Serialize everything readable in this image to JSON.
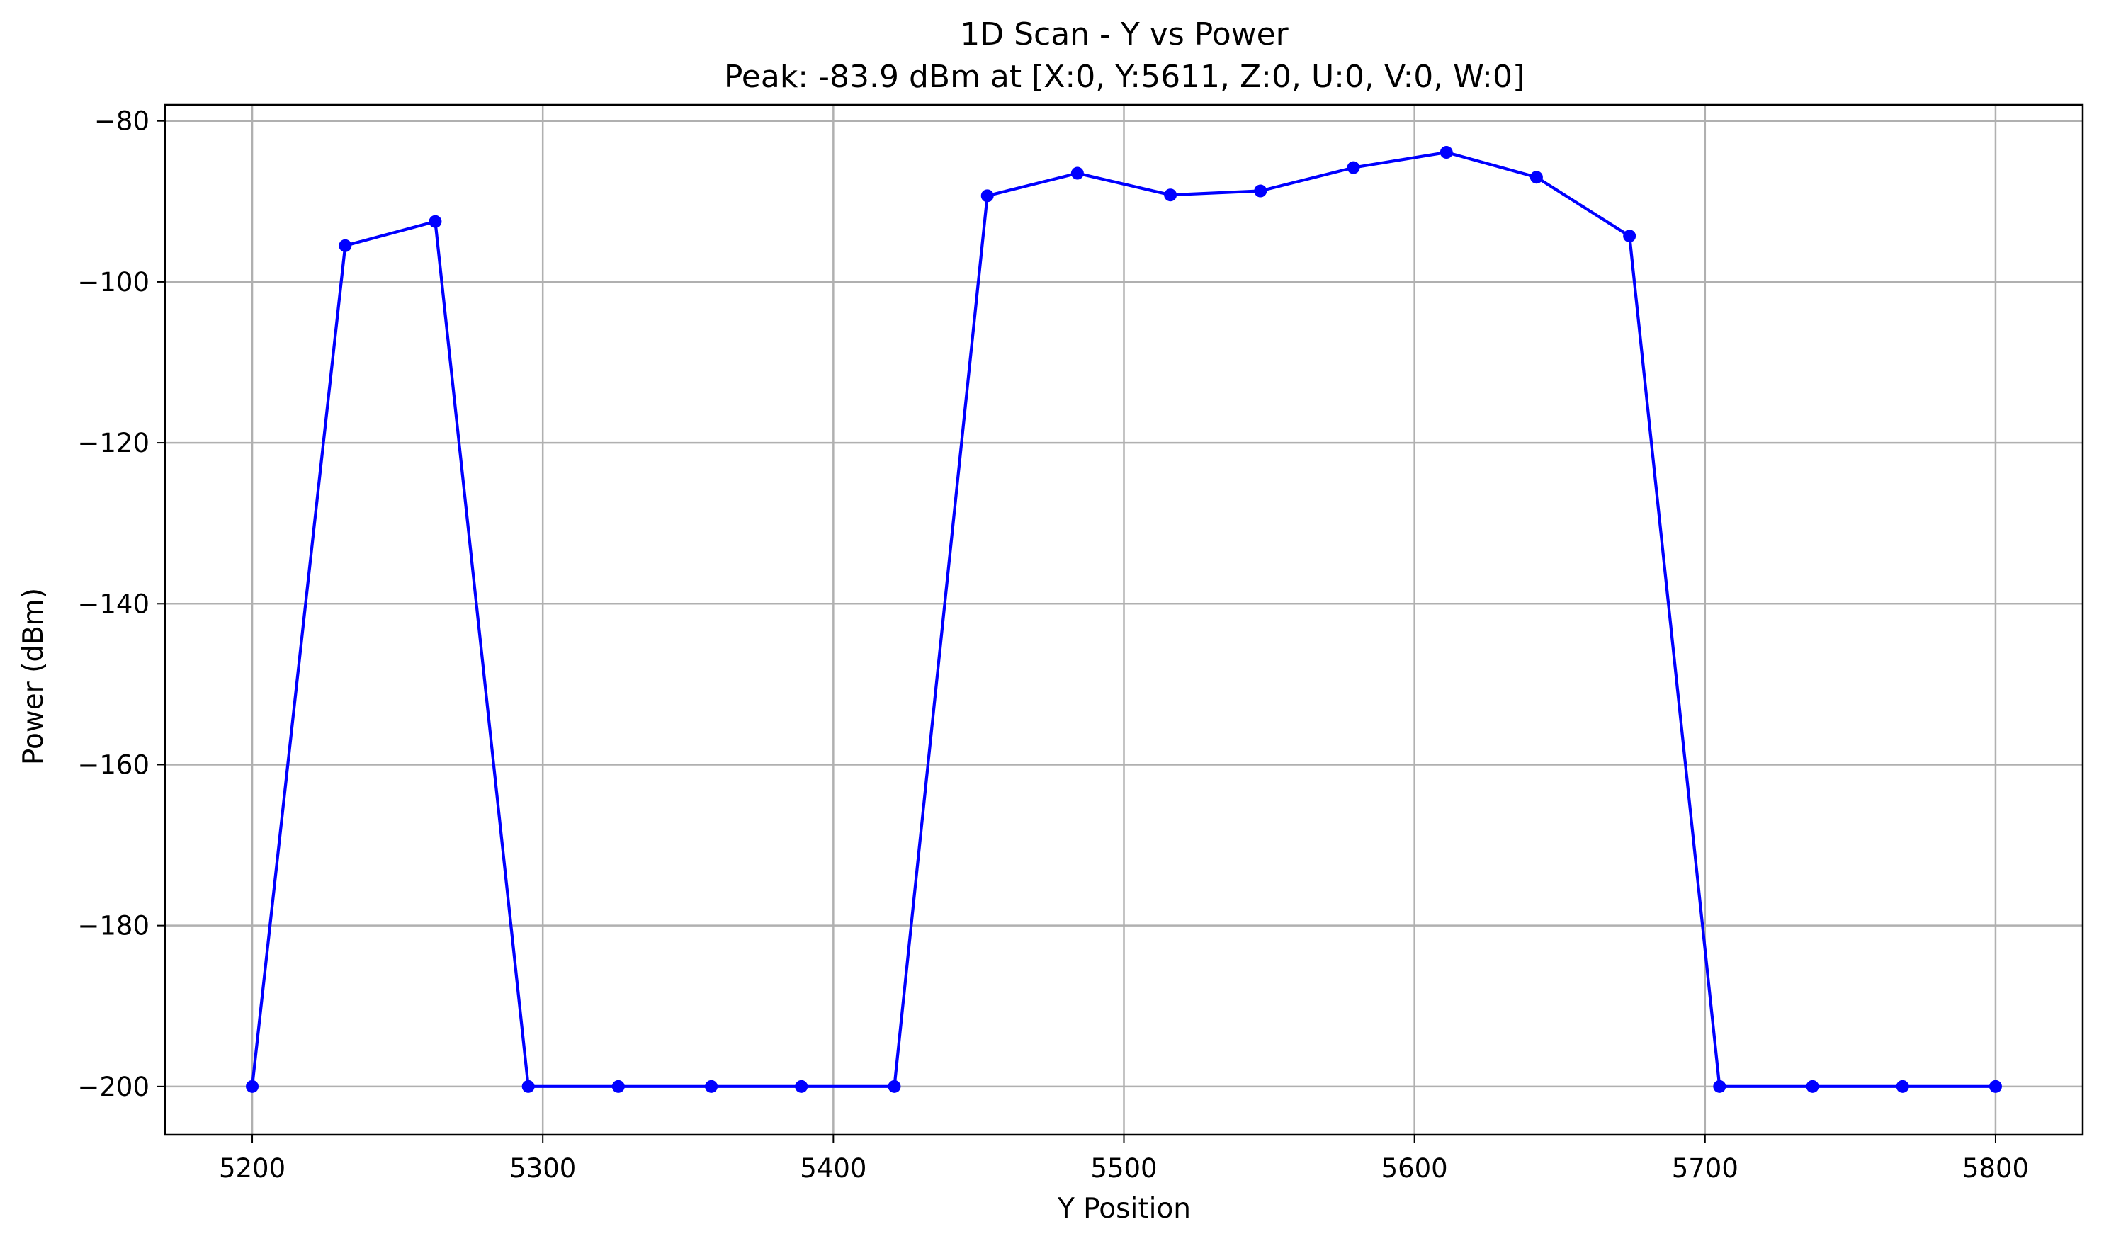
{
  "chart_data": {
    "type": "line",
    "title": "1D Scan - Y vs Power",
    "subtitle": "Peak: -83.9 dBm at [X:0, Y:5611, Z:0, U:0, V:0, W:0]",
    "xlabel": "Y Position",
    "ylabel": "Power (dBm)",
    "xlim": [
      5170,
      5830
    ],
    "ylim": [
      -206,
      -78
    ],
    "xticks": [
      5200,
      5300,
      5400,
      5500,
      5600,
      5700,
      5800
    ],
    "yticks": [
      -80,
      -100,
      -120,
      -140,
      -160,
      -180,
      -200
    ],
    "xtick_labels": [
      "5200",
      "5300",
      "5400",
      "5500",
      "5600",
      "5700",
      "5800"
    ],
    "ytick_labels": [
      "−80",
      "−100",
      "−120",
      "−140",
      "−160",
      "−180",
      "−200"
    ],
    "grid": true,
    "color": "#0000ff",
    "series": [
      {
        "x": [
          5200,
          5232,
          5263,
          5295,
          5326,
          5358,
          5389,
          5421,
          5453,
          5484,
          5516,
          5547,
          5579,
          5611,
          5642,
          5674,
          5705,
          5737,
          5768,
          5800
        ],
        "y": [
          -200,
          -95.5,
          -92.5,
          -200,
          -200,
          -200,
          -200,
          -200,
          -89.3,
          -86.5,
          -89.2,
          -88.7,
          -85.8,
          -83.9,
          -87.0,
          -94.3,
          -200,
          -200,
          -200,
          -200
        ]
      }
    ]
  }
}
